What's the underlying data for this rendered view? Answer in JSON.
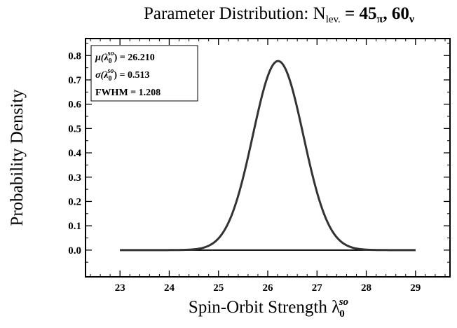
{
  "chart_data": {
    "type": "line",
    "title": "Parameter Distribution: N",
    "title_sub": "lev.",
    "title_tail": " = 45",
    "title_tail_sub1": "π",
    "title_tail_mid": ", 60",
    "title_tail_sub2": "ν",
    "xlabel": "Spin-Orbit Strength λ",
    "xlabel_sub": "0",
    "xlabel_sup": "so",
    "ylabel": "Probability Density",
    "xlim": [
      22.3,
      29.7
    ],
    "ylim": [
      -0.11,
      0.87
    ],
    "x_ticks": [
      23,
      24,
      25,
      26,
      27,
      28,
      29
    ],
    "x_tick_labels": [
      "23",
      "24",
      "25",
      "26",
      "27",
      "28",
      "29"
    ],
    "y_ticks": [
      0.0,
      0.1,
      0.2,
      0.3,
      0.4,
      0.5,
      0.6,
      0.7,
      0.8
    ],
    "y_tick_labels": [
      "0.0",
      "0.1",
      "0.2",
      "0.3",
      "0.4",
      "0.5",
      "0.6",
      "0.7",
      "0.8"
    ],
    "grid": false,
    "series": [
      {
        "color": "#333333",
        "distribution": "normal",
        "mean": 26.21,
        "sigma": 0.513,
        "x": [
          23.0,
          23.5,
          24.0,
          24.5,
          25.0,
          25.25,
          25.5,
          25.75,
          26.0,
          26.21,
          26.5,
          26.75,
          27.0,
          27.25,
          27.5,
          28.0,
          28.5,
          29.0
        ],
        "y": [
          0.0,
          0.0,
          0.0,
          0.0031,
          0.0485,
          0.1359,
          0.2994,
          0.5218,
          0.7189,
          0.7777,
          0.6641,
          0.4613,
          0.2371,
          0.1003,
          0.0332,
          0.0018,
          0.0,
          0.0
        ]
      }
    ],
    "baseline": {
      "x": [
        23,
        29
      ],
      "y": 0.0
    },
    "annotation": {
      "line1_pre": "μ(λ",
      "line1_sub": "0",
      "line1_sup": "so",
      "line1_post": ") = 26.210",
      "line2_pre": "σ(λ",
      "line2_sub": "0",
      "line2_sup": "so",
      "line2_post": ") = 0.513",
      "line3": "FWHM = 1.208",
      "placement": "top-left"
    }
  }
}
